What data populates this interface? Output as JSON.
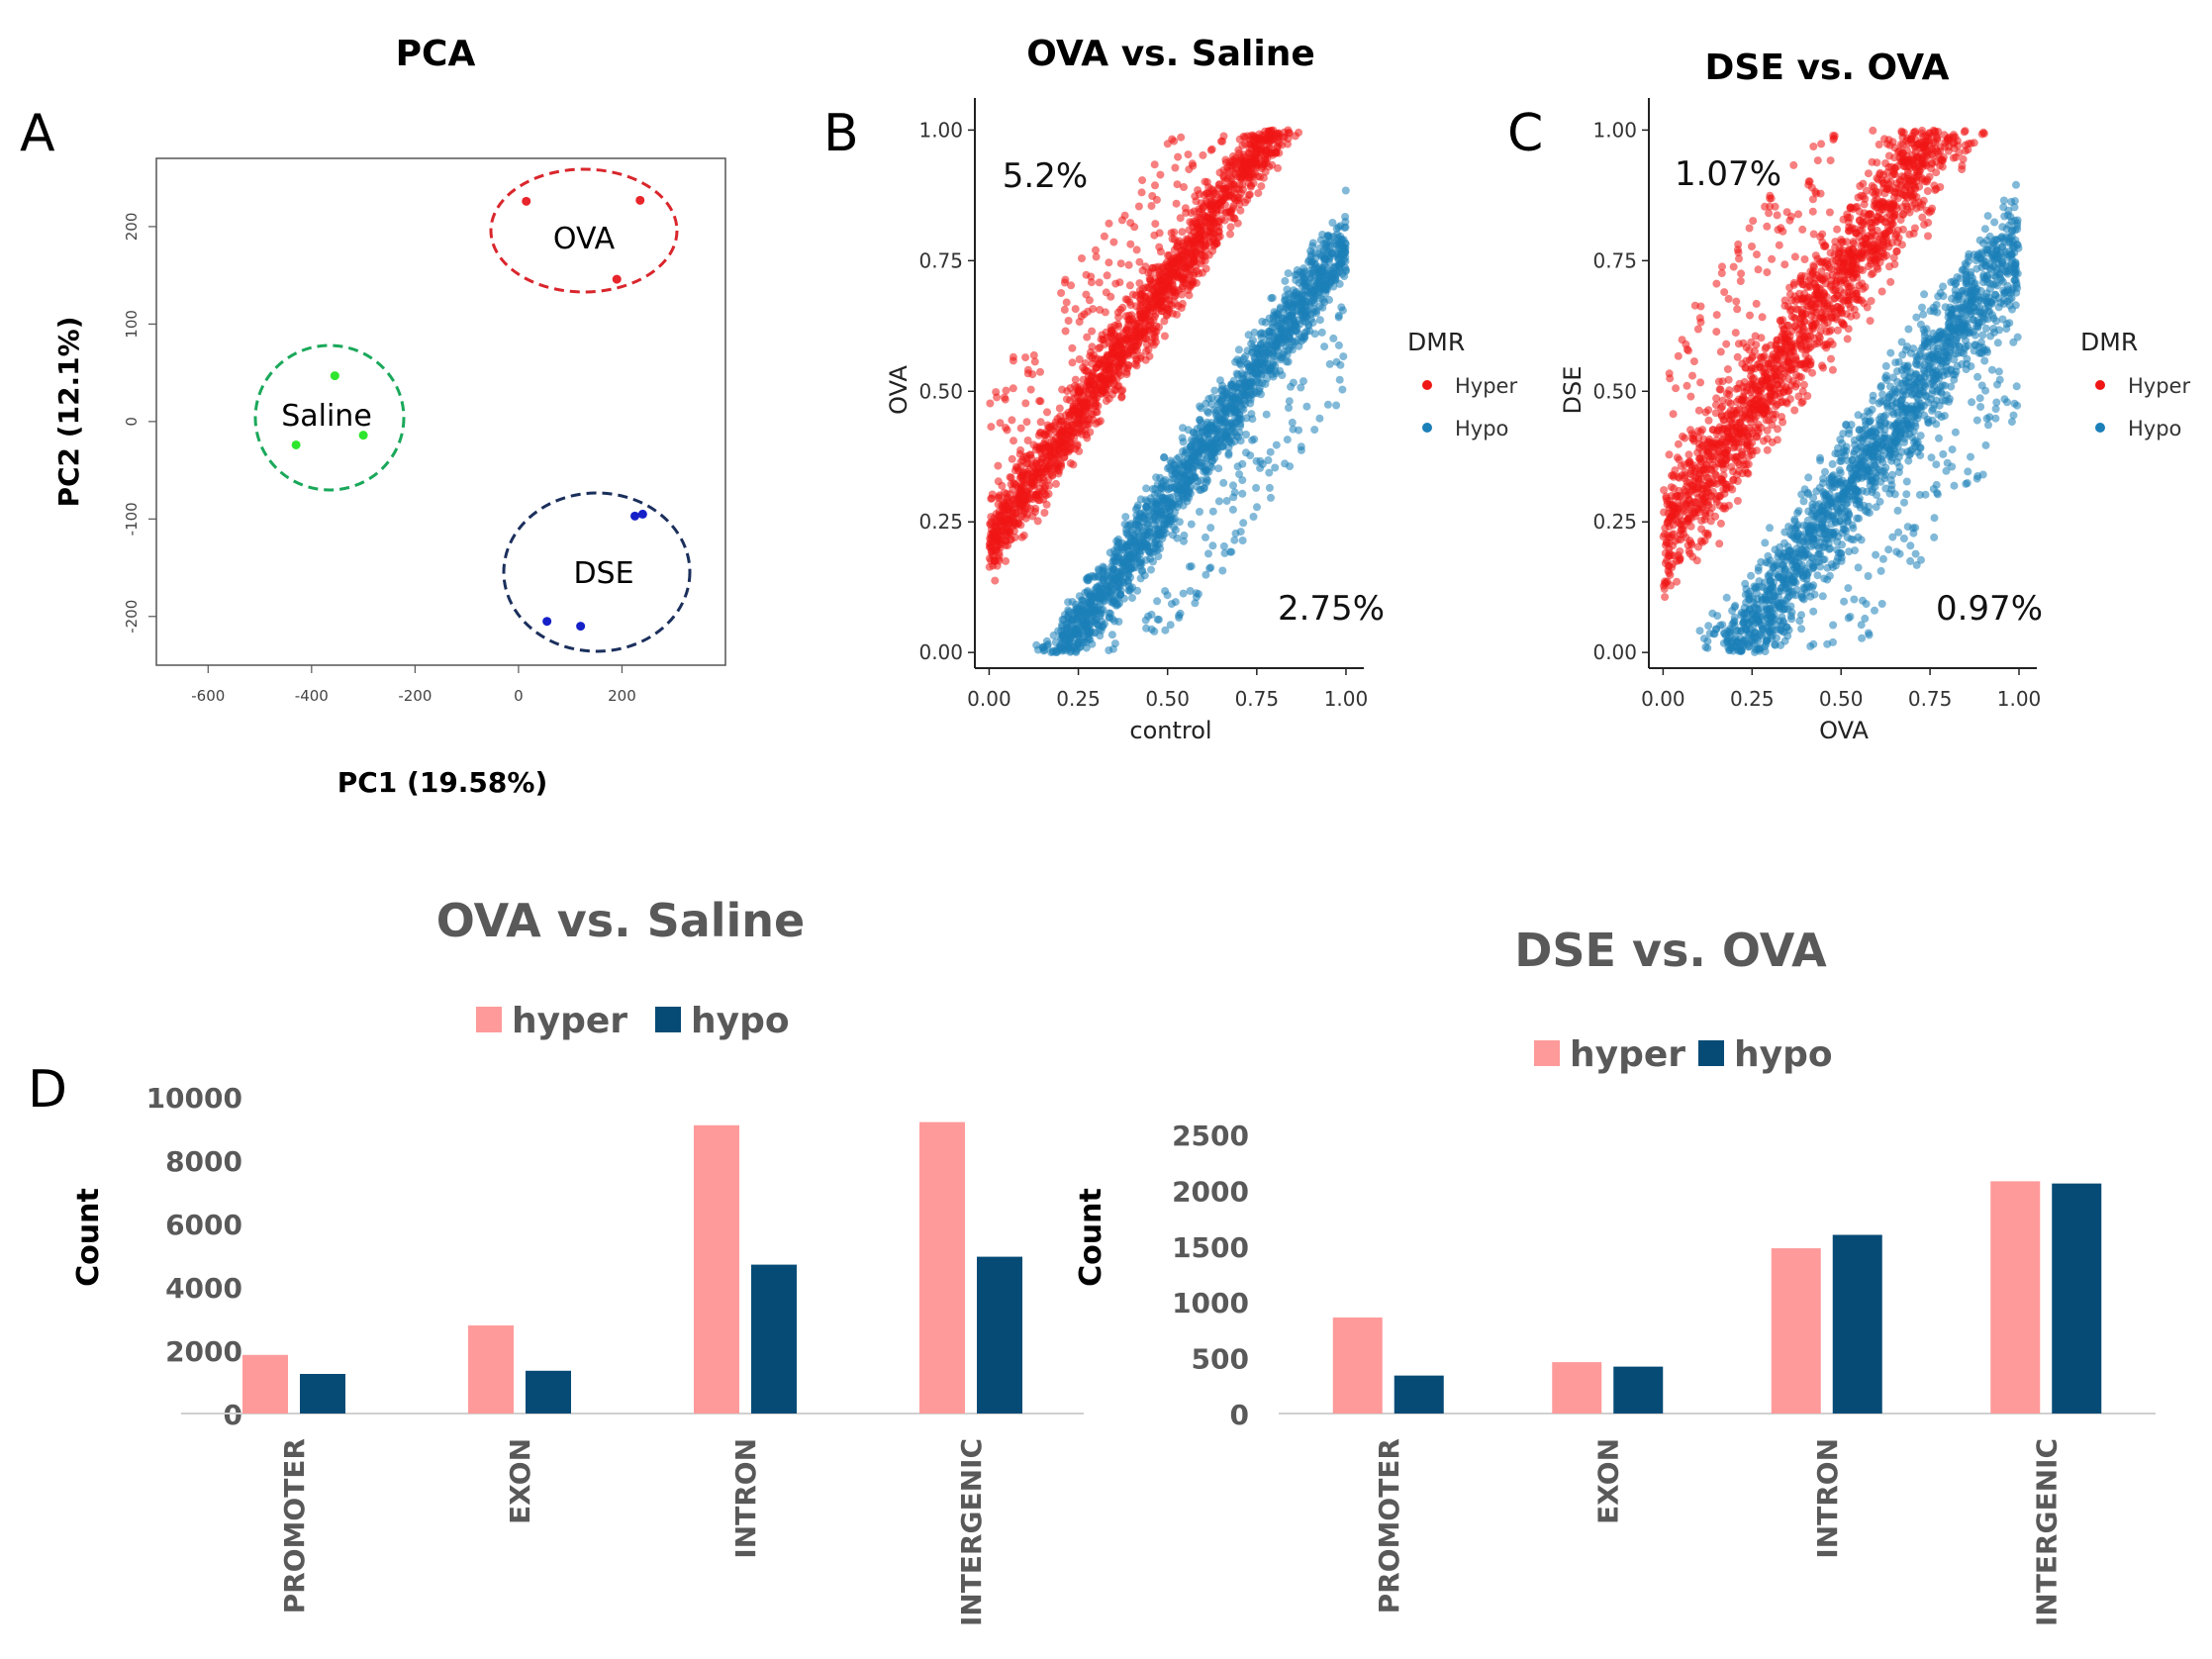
{
  "panel_labels": [
    "A",
    "B",
    "C",
    "D"
  ],
  "colors": {
    "pca_ova": "#e8252b",
    "pca_saline": "#2ee62e",
    "pca_dse": "#1520c8",
    "ellipse_ova": "#d9262c",
    "ellipse_saline": "#1aa85a",
    "ellipse_dse": "#1b2f5c",
    "hyper_scatter": "#f01616",
    "hypo_scatter": "#1b7fb8",
    "hyper_bar": "#ff9a9a",
    "hypo_bar": "#064b76"
  },
  "chart_data": [
    {
      "type": "scatter",
      "panel": "A",
      "title": "PCA",
      "xlabel": "PC1  (19.58%)",
      "ylabel": "PC2  (12.1%)",
      "xlim": [
        -700,
        400
      ],
      "ylim": [
        -250,
        270
      ],
      "xticks": [
        "-600",
        "-400",
        "-200",
        "0",
        "200"
      ],
      "yticks": [
        "-200",
        "-100",
        "0",
        "100",
        "200"
      ],
      "groups": [
        {
          "name": "OVA",
          "points": [
            [
              15,
              226
            ],
            [
              235,
              227
            ],
            [
              190,
              146
            ]
          ]
        },
        {
          "name": "Saline",
          "points": [
            [
              -355,
              47
            ],
            [
              -430,
              -24
            ],
            [
              -300,
              -14
            ]
          ]
        },
        {
          "name": "DSE",
          "points": [
            [
              225,
              -97
            ],
            [
              240,
              -95
            ],
            [
              55,
              -205
            ],
            [
              120,
              -210
            ]
          ]
        }
      ]
    },
    {
      "type": "scatter",
      "panel": "B",
      "title": "OVA vs. Saline",
      "xlabel": "control",
      "ylabel": "OVA",
      "xlim": [
        -0.04,
        1.05
      ],
      "ylim": [
        -0.03,
        1.05
      ],
      "xticks": [
        "0.00",
        "0.25",
        "0.50",
        "0.75",
        "1.00"
      ],
      "yticks": [
        "0.00",
        "0.25",
        "0.50",
        "0.75",
        "1.00"
      ],
      "legend_title": "DMR",
      "legend": [
        "Hyper",
        "Hypo"
      ],
      "annotations": [
        "5.2%",
        "2.75%"
      ],
      "series": [
        {
          "name": "Hyper",
          "description": "cloud above diagonal",
          "band": [
            0.1,
            0.32
          ]
        },
        {
          "name": "Hypo",
          "description": "cloud below diagonal",
          "band": [
            -0.32,
            -0.1
          ]
        }
      ]
    },
    {
      "type": "scatter",
      "panel": "C",
      "title": "DSE vs. OVA",
      "xlabel": "OVA",
      "ylabel": "DSE",
      "xlim": [
        -0.04,
        1.05
      ],
      "ylim": [
        -0.03,
        1.05
      ],
      "xticks": [
        "0.00",
        "0.25",
        "0.50",
        "0.75",
        "1.00"
      ],
      "yticks": [
        "0.00",
        "0.25",
        "0.50",
        "0.75",
        "1.00"
      ],
      "legend_title": "DMR",
      "legend": [
        "Hyper",
        "Hypo"
      ],
      "annotations": [
        "1.07%",
        "0.97%"
      ],
      "series": [
        {
          "name": "Hyper",
          "description": "cloud above diagonal",
          "band": [
            0.04,
            0.4
          ]
        },
        {
          "name": "Hypo",
          "description": "cloud below diagonal",
          "band": [
            -0.38,
            -0.04
          ]
        }
      ]
    },
    {
      "type": "bar",
      "panel": "D",
      "title": "OVA vs. Saline",
      "ylabel": "Count",
      "ylim": [
        0,
        10000
      ],
      "yticks": [
        "10000",
        "8000",
        "6000",
        "4000",
        "2000",
        "0"
      ],
      "categories": [
        "PROMOTER",
        "EXON",
        "INTRON",
        "INTERGENIC"
      ],
      "series": [
        {
          "name": "hyper",
          "values": [
            1850,
            2780,
            9100,
            9200
          ]
        },
        {
          "name": "hypo",
          "values": [
            1250,
            1350,
            4700,
            4950
          ]
        }
      ]
    },
    {
      "type": "bar",
      "panel": "D",
      "title": "DSE vs. OVA",
      "ylabel": "Count",
      "ylim": [
        0,
        2500
      ],
      "yticks": [
        "2500",
        "2000",
        "1500",
        "1000",
        "500",
        "0"
      ],
      "categories": [
        "PROMOTER",
        "EXON",
        "INTRON",
        "INTERGENIC"
      ],
      "series": [
        {
          "name": "hyper",
          "values": [
            860,
            460,
            1480,
            2080
          ]
        },
        {
          "name": "hypo",
          "values": [
            340,
            420,
            1600,
            2060
          ]
        }
      ]
    }
  ]
}
